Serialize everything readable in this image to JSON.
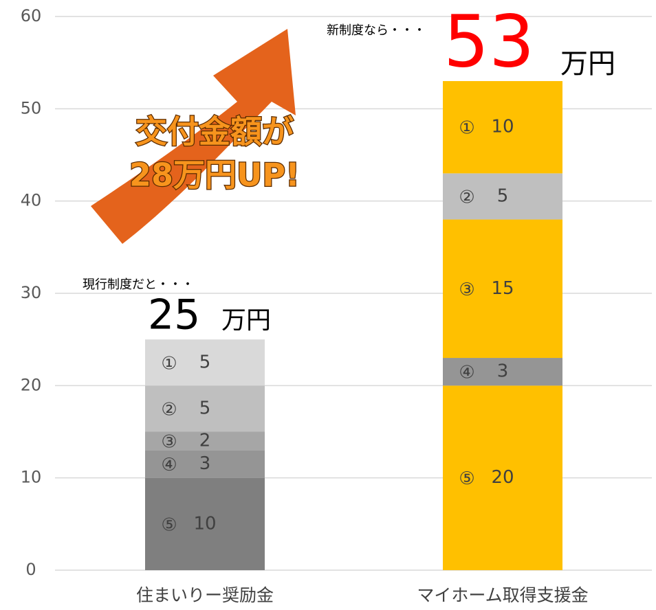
{
  "chart_data": {
    "type": "bar",
    "stacked": true,
    "categories": [
      "住まいりー奨励金",
      "マイホーム取得支援金"
    ],
    "series": [
      {
        "name": "⑤",
        "colors": [
          "#7f7f7f",
          "#ffc000"
        ],
        "values": [
          10,
          20
        ]
      },
      {
        "name": "④",
        "colors": [
          "#959595",
          "#959595"
        ],
        "values": [
          3,
          3
        ]
      },
      {
        "name": "③",
        "colors": [
          "#a6a6a6",
          "#ffc000"
        ],
        "values": [
          2,
          15
        ]
      },
      {
        "name": "②",
        "colors": [
          "#bfbfbf",
          "#bfbfbf"
        ],
        "values": [
          5,
          5
        ]
      },
      {
        "name": "①",
        "colors": [
          "#d9d9d9",
          "#ffc000"
        ],
        "values": [
          5,
          10
        ]
      }
    ],
    "ylim": [
      0,
      60
    ],
    "yticks": [
      0,
      10,
      20,
      30,
      40,
      50,
      60
    ],
    "grid": true,
    "annotations": [
      {
        "text": "現行制度だと・・・",
        "total": 25,
        "unit": "万円",
        "color": "#000000"
      },
      {
        "text": "新制度なら・・・",
        "total": 53,
        "unit": "万円",
        "color": "#ff0000"
      }
    ],
    "callout": [
      "交付金額が",
      "28万円UP!"
    ]
  }
}
